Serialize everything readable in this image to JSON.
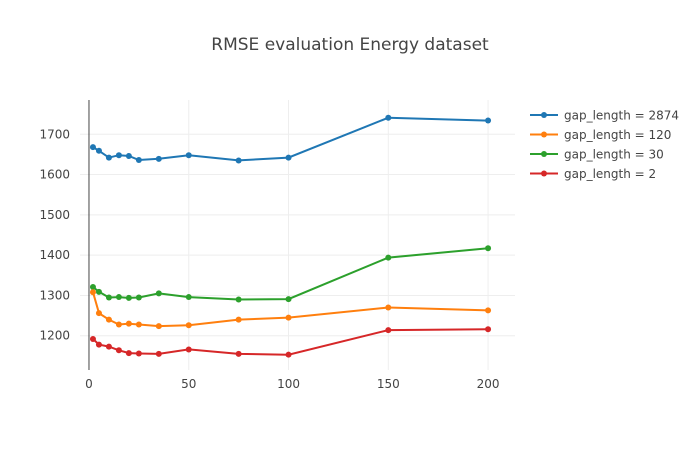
{
  "chart_data": {
    "type": "line",
    "title": "RMSE evaluation Energy dataset",
    "xlabel": "",
    "ylabel": "",
    "xlim": [
      -4.5,
      213.5
    ],
    "ylim": [
      1115,
      1785
    ],
    "x_ticks": [
      0,
      50,
      100,
      150,
      200
    ],
    "y_ticks": [
      1200,
      1300,
      1400,
      1500,
      1600,
      1700
    ],
    "grid": true,
    "legend_position": "top-right",
    "series": [
      {
        "name": "gap_length = 2874",
        "color": "#1f77b4",
        "x": [
          2,
          5,
          10,
          15,
          20,
          25,
          35,
          50,
          75,
          100,
          150,
          200
        ],
        "y": [
          1668,
          1659,
          1642,
          1648,
          1646,
          1636,
          1639,
          1648,
          1635,
          1642,
          1741,
          1734
        ]
      },
      {
        "name": "gap_length = 120",
        "color": "#ff7f0e",
        "x": [
          2,
          5,
          10,
          15,
          20,
          25,
          35,
          50,
          75,
          100,
          150,
          200
        ],
        "y": [
          1308,
          1256,
          1240,
          1228,
          1230,
          1228,
          1224,
          1226,
          1240,
          1245,
          1270,
          1263
        ]
      },
      {
        "name": "gap_length = 30",
        "color": "#2ca02c",
        "x": [
          2,
          5,
          10,
          15,
          20,
          25,
          35,
          50,
          75,
          100,
          150,
          200
        ],
        "y": [
          1321,
          1309,
          1295,
          1296,
          1294,
          1295,
          1305,
          1296,
          1290,
          1291,
          1394,
          1417
        ]
      },
      {
        "name": "gap_length = 2",
        "color": "#d62728",
        "x": [
          2,
          5,
          10,
          15,
          20,
          25,
          35,
          50,
          75,
          100,
          150,
          200
        ],
        "y": [
          1192,
          1178,
          1173,
          1164,
          1157,
          1156,
          1155,
          1166,
          1155,
          1153,
          1214,
          1216
        ]
      }
    ]
  }
}
